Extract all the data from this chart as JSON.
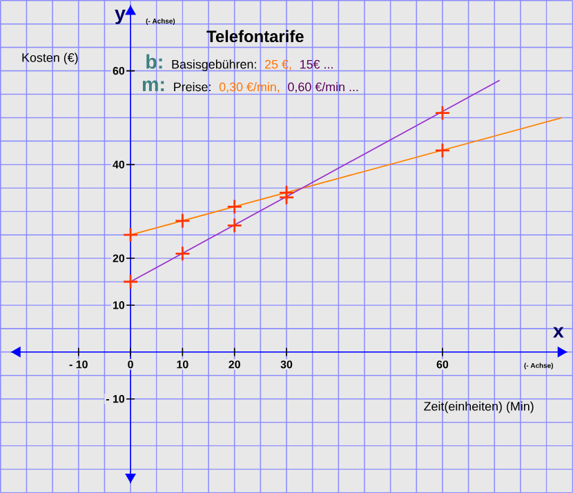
{
  "chart_data": {
    "type": "line",
    "title": "Telefontarife",
    "xlabel": "x",
    "ylabel": "y",
    "annotations": [
      "(- Achse)",
      "Kosten (€)",
      "(- Achse)",
      "Zeit(einheiten) (Min)",
      "b:",
      "Basisgebühren:",
      "25 €,",
      "15€ ...",
      "m:",
      "Preise:",
      "0,30 €/min,",
      "0,60 €/min ..."
    ],
    "xlim": [
      -25,
      85
    ],
    "ylim": [
      -30,
      75
    ],
    "xticks": [
      {
        "value": -10,
        "label": "- 10"
      },
      0,
      10,
      20,
      30,
      60
    ],
    "yticks": [
      {
        "value": -10,
        "label": "- 10"
      },
      10,
      20,
      40,
      60
    ],
    "grid": true,
    "series": [
      {
        "type": "line",
        "color": "#ff8000",
        "x": [
          0,
          83
        ],
        "values": [
          25,
          50
        ]
      },
      {
        "type": "line",
        "color": "#9933cc",
        "x": [
          0,
          71
        ],
        "values": [
          15,
          58
        ]
      },
      {
        "type": "scatter",
        "color": "#ff3300",
        "marker": "cross",
        "x": [
          0,
          10,
          20,
          30,
          60
        ],
        "values": [
          25,
          28,
          31,
          34,
          43
        ]
      },
      {
        "type": "scatter",
        "color": "#ff3300",
        "marker": "cross",
        "x": [
          0,
          10,
          20,
          30,
          60
        ],
        "values": [
          15,
          21,
          27,
          33,
          51
        ]
      }
    ]
  }
}
